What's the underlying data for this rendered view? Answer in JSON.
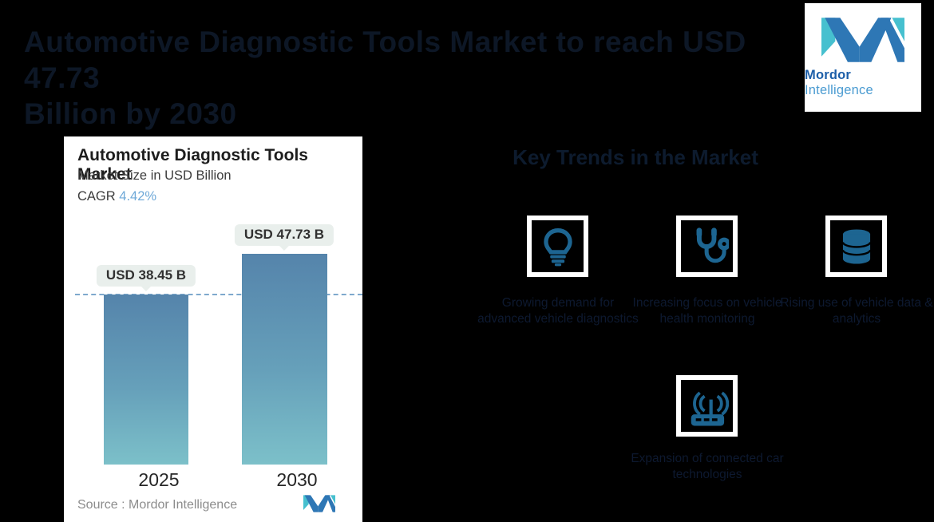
{
  "page_title": {
    "line1": "Automotive Diagnostic Tools Market to reach USD 47.73",
    "line2": "Billion by 2030"
  },
  "brand": {
    "name_bold": "Mordor",
    "name_light": "Intelligence"
  },
  "chart_card": {
    "title": "Automotive Diagnostic Tools Market",
    "subtitle": "Market Size in USD Billion",
    "cagr_label": "CAGR",
    "cagr_value": "4.42%",
    "source_label": "Source :  Mordor Intelligence"
  },
  "chart_data": {
    "type": "bar",
    "title": "Automotive Diagnostic Tools Market",
    "subtitle": "Market Size in USD Billion",
    "cagr_percent": 4.42,
    "unit": "USD Billion",
    "categories": [
      "2025",
      "2030"
    ],
    "values": [
      38.45,
      47.73
    ],
    "value_labels": [
      "USD 38.45 B",
      "USD 47.73 B"
    ],
    "reference_line": {
      "value": 38.45,
      "style": "dashed",
      "color": "#7ea9cd"
    },
    "bar_gradient_top": "#5584ab",
    "bar_gradient_bottom": "#7cc0c9",
    "legend": "none",
    "grid": "off"
  },
  "trends": {
    "heading": "Key Trends in the Market",
    "items": [
      {
        "icon": "lightbulb-icon",
        "caption": "Growing demand for advanced vehicle diagnostics"
      },
      {
        "icon": "stethoscope-icon",
        "caption": "Increasing focus on vehicle health monitoring"
      },
      {
        "icon": "database-icon",
        "caption": "Rising use of vehicle data & analytics"
      },
      {
        "icon": "router-icon",
        "caption": "Expansion of connected car technologies"
      }
    ]
  },
  "colors": {
    "background": "#000000",
    "icon_blue": "#1d6591",
    "logo_teal": "#46c0cf",
    "logo_blue": "#2e77b5",
    "cagr_accent": "#6fa9d8",
    "callout_bg": "#e9efec"
  }
}
